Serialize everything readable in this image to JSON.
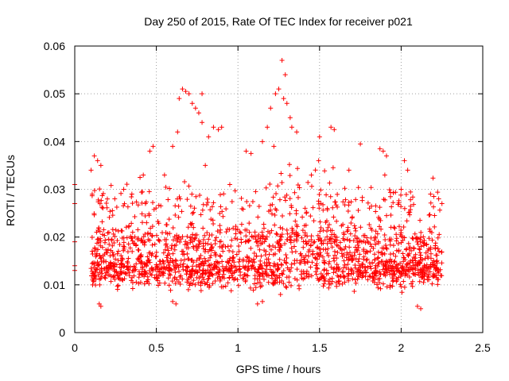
{
  "chart_data": {
    "type": "scatter",
    "title": "Day 250 of 2015, Rate Of TEC Index for receiver p021",
    "xlabel": "GPS time / hours",
    "ylabel": "ROTI / TECUs",
    "xlim": [
      0,
      2.5
    ],
    "ylim": [
      0,
      0.06
    ],
    "xticks": [
      0,
      0.5,
      1,
      1.5,
      2,
      2.5
    ],
    "xtick_labels": [
      "0",
      "0.5",
      "1",
      "1.5",
      "2",
      "2.5"
    ],
    "yticks": [
      0,
      0.01,
      0.02,
      0.03,
      0.04,
      0.05,
      0.06
    ],
    "ytick_labels": [
      "0",
      "0.01",
      "0.02",
      "0.03",
      "0.04",
      "0.05",
      "0.06"
    ],
    "grid": true,
    "marker": "+",
    "color": "#ff0000",
    "series": [
      {
        "name": "p021",
        "points": [
          [
            0.0,
            0.031
          ],
          [
            0.0,
            0.027
          ],
          [
            0.0,
            0.019
          ],
          [
            0.0,
            0.014
          ],
          [
            0.0,
            0.013
          ],
          [
            0.64,
            0.049
          ],
          [
            0.66,
            0.051
          ],
          [
            0.68,
            0.0505
          ],
          [
            0.7,
            0.05
          ],
          [
            0.72,
            0.048
          ],
          [
            0.74,
            0.047
          ],
          [
            0.76,
            0.046
          ],
          [
            0.78,
            0.044
          ],
          [
            0.78,
            0.05
          ],
          [
            0.63,
            0.042
          ],
          [
            0.6,
            0.039
          ],
          [
            0.48,
            0.039
          ],
          [
            0.46,
            0.038
          ],
          [
            0.85,
            0.043
          ],
          [
            0.88,
            0.0425
          ],
          [
            0.9,
            0.043
          ],
          [
            0.82,
            0.041
          ],
          [
            1.27,
            0.057
          ],
          [
            1.29,
            0.054
          ],
          [
            1.25,
            0.051
          ],
          [
            1.28,
            0.049
          ],
          [
            1.3,
            0.048
          ],
          [
            1.23,
            0.05
          ],
          [
            1.2,
            0.047
          ],
          [
            1.18,
            0.043
          ],
          [
            1.33,
            0.043
          ],
          [
            1.36,
            0.042
          ],
          [
            1.32,
            0.045
          ],
          [
            1.15,
            0.04
          ],
          [
            1.22,
            0.039
          ],
          [
            1.57,
            0.043
          ],
          [
            1.59,
            0.0425
          ],
          [
            1.75,
            0.0395
          ],
          [
            1.5,
            0.041
          ],
          [
            1.87,
            0.0385
          ],
          [
            1.89,
            0.038
          ],
          [
            1.91,
            0.037
          ],
          [
            2.02,
            0.036
          ],
          [
            2.04,
            0.034
          ],
          [
            0.12,
            0.037
          ],
          [
            0.14,
            0.036
          ],
          [
            0.16,
            0.035
          ],
          [
            0.1,
            0.034
          ],
          [
            0.42,
            0.033
          ],
          [
            0.4,
            0.0325
          ],
          [
            0.55,
            0.033
          ],
          [
            1.05,
            0.038
          ],
          [
            1.08,
            0.0375
          ],
          [
            0.3,
            0.03
          ],
          [
            0.35,
            0.029
          ],
          [
            0.8,
            0.035
          ],
          [
            0.95,
            0.031
          ],
          [
            2.18,
            0.029
          ],
          [
            2.2,
            0.0285
          ],
          [
            2.23,
            0.028
          ],
          [
            2.25,
            0.027
          ],
          [
            1.9,
            0.033
          ],
          [
            2.0,
            0.03
          ],
          [
            1.68,
            0.034
          ],
          [
            1.45,
            0.033
          ],
          [
            0.15,
            0.006
          ],
          [
            0.16,
            0.0055
          ],
          [
            2.1,
            0.0055
          ],
          [
            2.12,
            0.005
          ],
          [
            0.6,
            0.0065
          ],
          [
            0.62,
            0.006
          ],
          [
            1.12,
            0.006
          ],
          [
            1.15,
            0.0065
          ]
        ]
      }
    ]
  }
}
